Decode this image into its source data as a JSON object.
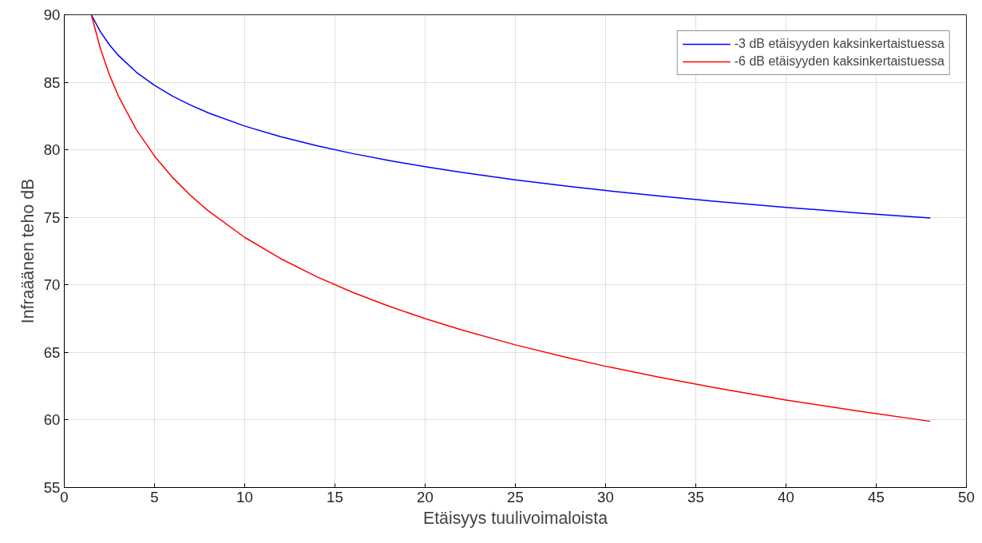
{
  "chart_data": {
    "type": "line",
    "xlabel": "Etäisyys tuulivoimaloista",
    "ylabel": "Infraäänen teho dB",
    "x": [
      1.5,
      2,
      2.5,
      3,
      4,
      5,
      6,
      7,
      8,
      10,
      12,
      14,
      16,
      18,
      20,
      22,
      25,
      28,
      30,
      33,
      36,
      40,
      44,
      48
    ],
    "series": [
      {
        "name": "-3 dB etäisyyden kaksinkertaistuessa",
        "color": "#0000ff",
        "values": [
          90,
          88.75,
          87.78,
          86.99,
          85.74,
          84.77,
          83.98,
          83.31,
          82.73,
          81.76,
          80.97,
          80.3,
          79.72,
          79.21,
          78.75,
          78.34,
          77.78,
          77.29,
          76.99,
          76.58,
          76.2,
          75.74,
          75.33,
          74.95
        ]
      },
      {
        "name": "-6 dB etäisyyden kaksinkertaistuessa",
        "color": "#ff0000",
        "values": [
          90,
          87.5,
          85.56,
          83.98,
          81.48,
          79.54,
          77.96,
          76.62,
          75.46,
          73.52,
          71.94,
          70.6,
          69.44,
          68.42,
          67.5,
          66.68,
          65.56,
          64.58,
          63.98,
          63.16,
          62.4,
          61.48,
          60.66,
          59.9
        ]
      }
    ],
    "xlim": [
      0,
      50
    ],
    "ylim": [
      55,
      90
    ],
    "xticks": [
      0,
      5,
      10,
      15,
      20,
      25,
      30,
      35,
      40,
      45,
      50
    ],
    "yticks": [
      55,
      60,
      65,
      70,
      75,
      80,
      85,
      90
    ],
    "grid": true,
    "legend": "top right",
    "marker": "none",
    "line_style": "solid"
  }
}
